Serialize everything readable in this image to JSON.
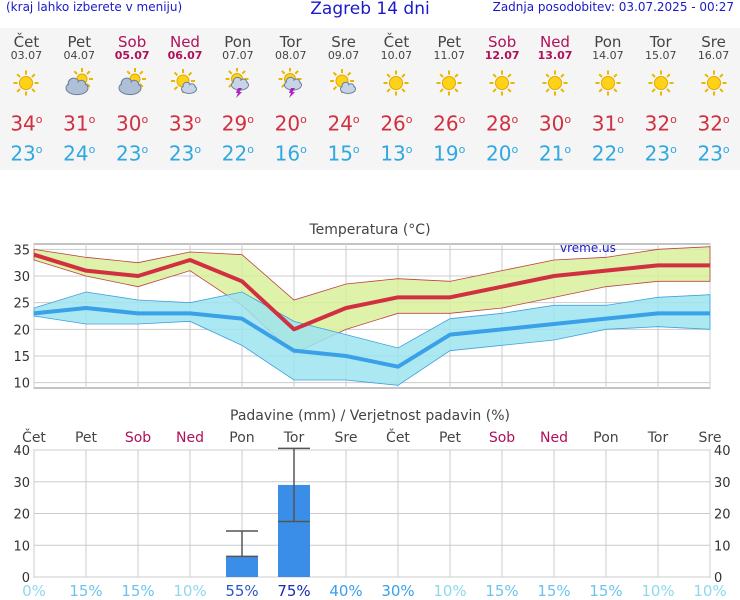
{
  "header": {
    "left_note": "(kraj lahko izberete v meniju)",
    "title": "Zagreb 14 dni",
    "updated": "Zadnja posodobitev: 03.07.2025 - 00:27"
  },
  "days": [
    {
      "name": "Čet",
      "date": "03.07",
      "weekend": false,
      "icon": "sun-icon",
      "tmax": "34",
      "tmin": "23"
    },
    {
      "name": "Pet",
      "date": "04.07",
      "weekend": false,
      "icon": "partly-cloudy-icon",
      "tmax": "31",
      "tmin": "24"
    },
    {
      "name": "Sob",
      "date": "05.07",
      "weekend": true,
      "icon": "partly-cloudy-icon",
      "tmax": "30",
      "tmin": "23"
    },
    {
      "name": "Ned",
      "date": "06.07",
      "weekend": true,
      "icon": "sun-cloud-icon",
      "tmax": "33",
      "tmin": "23"
    },
    {
      "name": "Pon",
      "date": "07.07",
      "weekend": false,
      "icon": "thunderstorm-icon",
      "tmax": "29",
      "tmin": "22"
    },
    {
      "name": "Tor",
      "date": "08.07",
      "weekend": false,
      "icon": "thunderstorm-icon",
      "tmax": "20",
      "tmin": "16"
    },
    {
      "name": "Sre",
      "date": "09.07",
      "weekend": false,
      "icon": "sun-cloud-icon",
      "tmax": "24",
      "tmin": "15"
    },
    {
      "name": "Čet",
      "date": "10.07",
      "weekend": false,
      "icon": "sun-icon",
      "tmax": "26",
      "tmin": "13"
    },
    {
      "name": "Pet",
      "date": "11.07",
      "weekend": false,
      "icon": "sun-icon",
      "tmax": "26",
      "tmin": "19"
    },
    {
      "name": "Sob",
      "date": "12.07",
      "weekend": true,
      "icon": "sun-icon",
      "tmax": "28",
      "tmin": "20"
    },
    {
      "name": "Ned",
      "date": "13.07",
      "weekend": true,
      "icon": "sun-icon",
      "tmax": "30",
      "tmin": "21"
    },
    {
      "name": "Pon",
      "date": "14.07",
      "weekend": false,
      "icon": "sun-icon",
      "tmax": "31",
      "tmin": "22"
    },
    {
      "name": "Tor",
      "date": "15.07",
      "weekend": false,
      "icon": "sun-icon",
      "tmax": "32",
      "tmin": "23"
    },
    {
      "name": "Sre",
      "date": "16.07",
      "weekend": false,
      "icon": "sun-icon",
      "tmax": "32",
      "tmin": "23"
    }
  ],
  "chart_data": [
    {
      "type": "line",
      "title": "Temperatura (°C)",
      "watermark": "vreme.us",
      "ylim": [
        9,
        36
      ],
      "yticks": [
        10,
        15,
        20,
        25,
        30,
        35
      ],
      "x": [
        "03.07",
        "04.07",
        "05.07",
        "06.07",
        "07.07",
        "08.07",
        "09.07",
        "10.07",
        "11.07",
        "12.07",
        "13.07",
        "14.07",
        "15.07",
        "16.07"
      ],
      "series": [
        {
          "values": [
            34,
            31,
            30,
            33,
            29,
            20,
            24,
            26,
            26,
            28,
            30,
            31,
            32,
            32
          ],
          "color": "#d03040"
        },
        {
          "values": [
            23,
            24,
            23,
            23,
            22,
            16,
            15,
            13,
            19,
            20,
            21,
            22,
            23,
            23
          ],
          "color": "#3aa0e8"
        }
      ],
      "bands": [
        {
          "upper": [
            35,
            33.5,
            32.5,
            34.5,
            34,
            25.5,
            28.5,
            29.5,
            29,
            31,
            33,
            33.5,
            35,
            35.5
          ],
          "lower": [
            33,
            30,
            28,
            31,
            24.5,
            15.5,
            20,
            23,
            23,
            24,
            26,
            28,
            29,
            29
          ],
          "fill": "#d8f09a"
        },
        {
          "upper": [
            24,
            27,
            25.5,
            25,
            27,
            21.5,
            19,
            16.5,
            22,
            23,
            24.5,
            24.5,
            26,
            26.5
          ],
          "lower": [
            22.5,
            21,
            21,
            21.5,
            17,
            10.5,
            10.5,
            9.5,
            16,
            17,
            18,
            20,
            20.5,
            20
          ],
          "fill": "#9ee4f0"
        }
      ],
      "grid": true
    },
    {
      "type": "bar",
      "title": "Padavine (mm) / Verjetnost padavin (%)",
      "ylim": [
        0,
        40
      ],
      "yticks": [
        0,
        10,
        20,
        30,
        40
      ],
      "categories": [
        "Čet",
        "Pet",
        "Sob",
        "Ned",
        "Pon",
        "Tor",
        "Sre",
        "Čet",
        "Pet",
        "Sob",
        "Ned",
        "Pon",
        "Tor",
        "Sre"
      ],
      "weekend": [
        false,
        false,
        true,
        true,
        false,
        false,
        false,
        false,
        false,
        true,
        true,
        false,
        false,
        false
      ],
      "values": [
        0,
        0,
        0,
        0,
        6.5,
        29,
        0,
        0,
        0,
        0,
        0,
        0,
        0,
        0
      ],
      "error_high": [
        null,
        null,
        null,
        null,
        14.5,
        40.5,
        null,
        null,
        null,
        null,
        null,
        null,
        null,
        null
      ],
      "error_low": [
        null,
        null,
        null,
        null,
        6.5,
        17.5,
        null,
        null,
        null,
        null,
        null,
        null,
        null,
        null
      ],
      "probability": [
        "0%",
        "15%",
        "15%",
        "10%",
        "55%",
        "75%",
        "40%",
        "30%",
        "10%",
        "15%",
        "15%",
        "15%",
        "10%",
        "10%"
      ],
      "bar_color": "#3a8ee8",
      "grid": true
    }
  ]
}
